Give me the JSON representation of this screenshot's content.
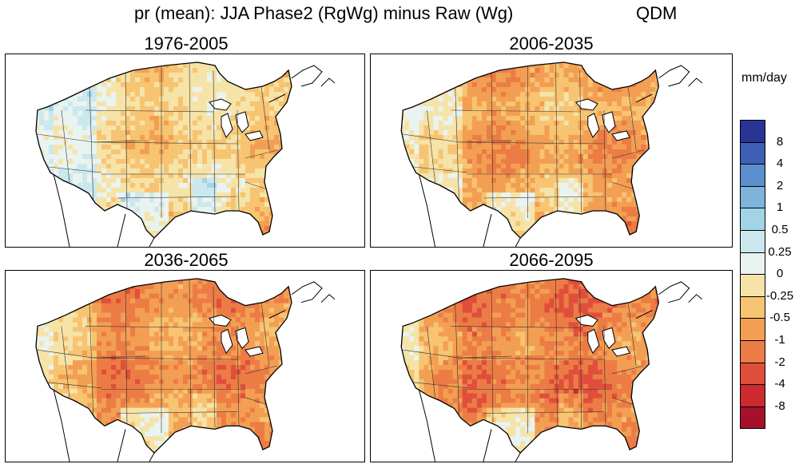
{
  "figure": {
    "title": "pr (mean): JJA Phase2 (RgWg) minus Raw (Wg)",
    "method": "QDM"
  },
  "panels": [
    {
      "title": "1976-2005",
      "intensity": 0.35
    },
    {
      "title": "2006-2035",
      "intensity": 0.65
    },
    {
      "title": "2036-2065",
      "intensity": 0.78
    },
    {
      "title": "2066-2095",
      "intensity": 0.9
    }
  ],
  "colorbar": {
    "units": "mm/day",
    "labels": [
      "8",
      "4",
      "2",
      "1",
      "0.5",
      "0.25",
      "0",
      "-0.25",
      "-0.5",
      "-1",
      "-2",
      "-4",
      "-8"
    ],
    "colors": [
      "#283593",
      "#3f5fb5",
      "#5b8fcd",
      "#7db4da",
      "#a3d3e6",
      "#cbe8ef",
      "#e9f3f0",
      "#f6e3a8",
      "#f7c472",
      "#f39f53",
      "#ec7c45",
      "#e04e3c",
      "#cc2a2c",
      "#a5102a"
    ]
  }
}
